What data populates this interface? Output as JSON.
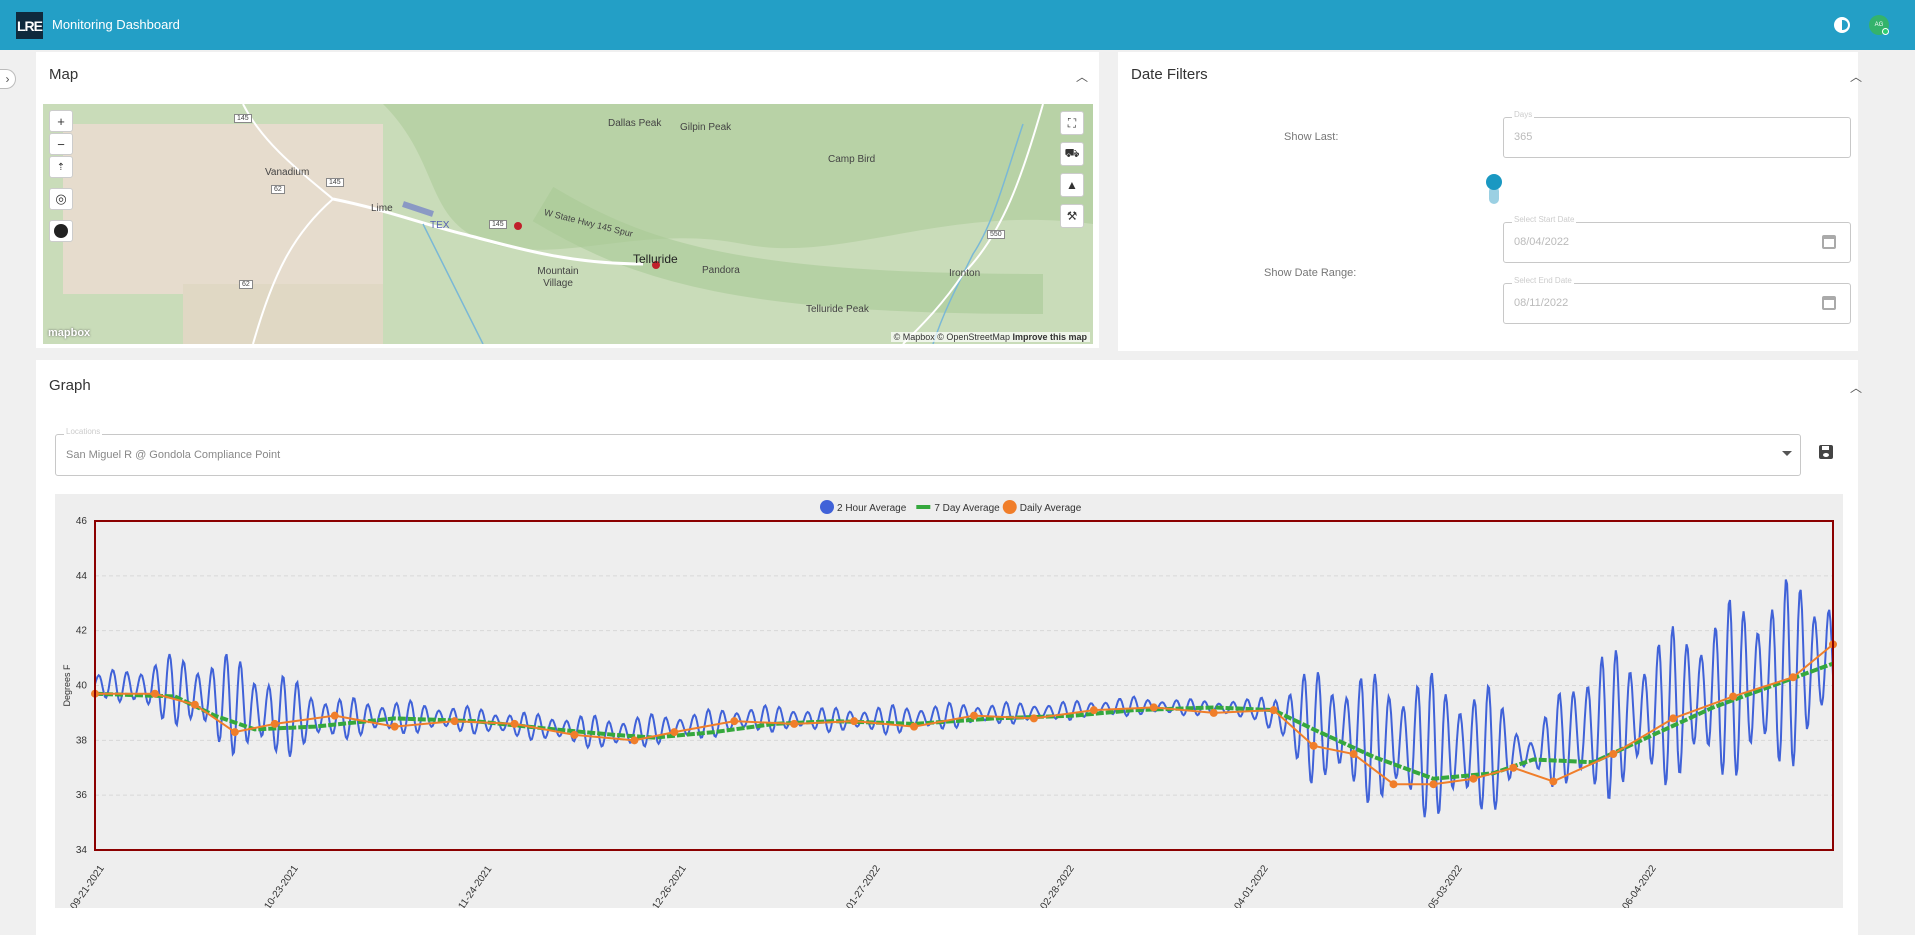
{
  "header": {
    "logo": "LRE",
    "title": "Monitoring Dashboard",
    "avatar_initials": "AG"
  },
  "map_panel": {
    "title": "Map",
    "labels": [
      "Dallas Peak",
      "Gilpin Peak",
      "Camp Bird",
      "Vanadium",
      "Lime",
      "TEX",
      "W State Hwy 145 Spur",
      "Telluride",
      "Pandora",
      "Mountain Village",
      "Telluride Peak",
      "Ironton"
    ],
    "shields": [
      "145",
      "145",
      "145",
      "62",
      "550",
      "62"
    ],
    "zoom_in": "+",
    "zoom_out": "−",
    "attribution": "© Mapbox © OpenStreetMap",
    "improve": "Improve this map",
    "mapbox_logo": "mapbox"
  },
  "date_filters": {
    "title": "Date Filters",
    "show_last_label": "Show Last:",
    "days_label": "Days",
    "days_value": "365",
    "show_range_label": "Show Date Range:",
    "start_label": "Select Start Date",
    "start_value": "08/04/2022",
    "end_label": "Select End Date",
    "end_value": "08/11/2022"
  },
  "graph_panel": {
    "title": "Graph",
    "locations_label": "Locations",
    "location_value": "San Miguel R @ Gondola Compliance Point"
  },
  "chart_data": {
    "type": "line",
    "ylabel": "Degrees F",
    "ylim": [
      34,
      46
    ],
    "yticks": [
      34,
      36,
      38,
      40,
      42,
      44,
      46
    ],
    "xlabels": [
      "09-21-2021",
      "10-23-2021",
      "11-24-2021",
      "12-26-2021",
      "01-27-2022",
      "02-28-2022",
      "04-01-2022",
      "05-03-2022",
      "06-04-2022"
    ],
    "legend_position": "top-center",
    "frame_color": "#8b0000",
    "series": [
      {
        "name": "2 Hour Average",
        "color": "#4062d8",
        "marker": "line",
        "envelope": [
          [
            0,
            39.7,
            40.4
          ],
          [
            4,
            38.5,
            41.2
          ],
          [
            7,
            37.4,
            41.2
          ],
          [
            9,
            37.2,
            40.6
          ],
          [
            12,
            38.0,
            39.6
          ],
          [
            15,
            38.2,
            39.5
          ],
          [
            18,
            38.3,
            39.3
          ],
          [
            22,
            38.0,
            39.0
          ],
          [
            26,
            37.6,
            38.9
          ],
          [
            29,
            37.9,
            39.0
          ],
          [
            33,
            38.3,
            39.3
          ],
          [
            37,
            38.3,
            39.2
          ],
          [
            40,
            38.2,
            39.3
          ],
          [
            44,
            38.5,
            39.4
          ],
          [
            48,
            38.7,
            39.4
          ],
          [
            52,
            38.9,
            39.6
          ],
          [
            55,
            38.9,
            39.5
          ],
          [
            58,
            38.8,
            39.5
          ],
          [
            61,
            36.3,
            40.7
          ],
          [
            64,
            35.6,
            40.5
          ],
          [
            67,
            35.0,
            40.5
          ],
          [
            70,
            35.3,
            40.0
          ],
          [
            72,
            37.0,
            38.0
          ],
          [
            74,
            35.5,
            41.0
          ],
          [
            77,
            36.0,
            41.6
          ],
          [
            80,
            36.5,
            42.5
          ],
          [
            84,
            36.5,
            44.0
          ],
          [
            87,
            38.0,
            44.0
          ]
        ]
      },
      {
        "name": "7 Day Average",
        "color": "#35a83d",
        "marker": "line",
        "points": [
          [
            0,
            39.7
          ],
          [
            4,
            39.6
          ],
          [
            6,
            38.9
          ],
          [
            8,
            38.4
          ],
          [
            11,
            38.5
          ],
          [
            15,
            38.8
          ],
          [
            19,
            38.7
          ],
          [
            23,
            38.4
          ],
          [
            26,
            38.2
          ],
          [
            28,
            38.1
          ],
          [
            31,
            38.3
          ],
          [
            34,
            38.6
          ],
          [
            37,
            38.7
          ],
          [
            41,
            38.6
          ],
          [
            45,
            38.8
          ],
          [
            49,
            38.9
          ],
          [
            52,
            39.1
          ],
          [
            56,
            39.2
          ],
          [
            59,
            39.1
          ],
          [
            61,
            38.4
          ],
          [
            64,
            37.4
          ],
          [
            67,
            36.6
          ],
          [
            70,
            36.8
          ],
          [
            72,
            37.3
          ],
          [
            75,
            37.2
          ],
          [
            78,
            38.2
          ],
          [
            81,
            39.2
          ],
          [
            84,
            40.0
          ],
          [
            87,
            40.8
          ]
        ]
      },
      {
        "name": "Daily Average",
        "color": "#f07e2a",
        "marker": "circle",
        "points": [
          [
            0,
            39.7
          ],
          [
            3,
            39.7
          ],
          [
            5,
            39.3
          ],
          [
            7,
            38.3
          ],
          [
            9,
            38.6
          ],
          [
            12,
            38.9
          ],
          [
            15,
            38.5
          ],
          [
            18,
            38.7
          ],
          [
            21,
            38.6
          ],
          [
            24,
            38.2
          ],
          [
            27,
            38.0
          ],
          [
            29,
            38.3
          ],
          [
            32,
            38.7
          ],
          [
            35,
            38.6
          ],
          [
            38,
            38.7
          ],
          [
            41,
            38.5
          ],
          [
            44,
            38.9
          ],
          [
            47,
            38.8
          ],
          [
            50,
            39.1
          ],
          [
            53,
            39.2
          ],
          [
            56,
            39.0
          ],
          [
            59,
            39.1
          ],
          [
            61,
            37.8
          ],
          [
            63,
            37.5
          ],
          [
            65,
            36.4
          ],
          [
            67,
            36.4
          ],
          [
            69,
            36.6
          ],
          [
            71,
            37.0
          ],
          [
            73,
            36.5
          ],
          [
            76,
            37.5
          ],
          [
            79,
            38.8
          ],
          [
            82,
            39.6
          ],
          [
            85,
            40.3
          ],
          [
            87,
            41.5
          ]
        ]
      }
    ]
  }
}
